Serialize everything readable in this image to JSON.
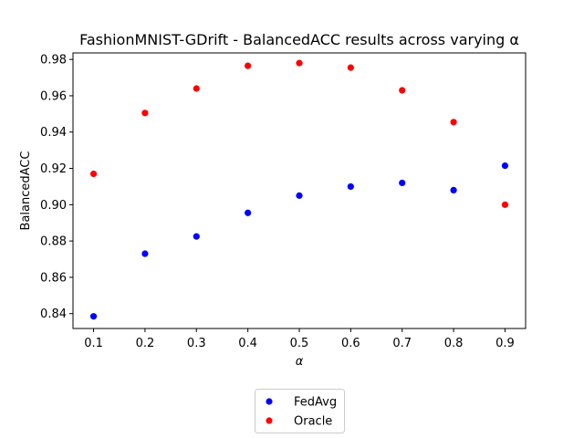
{
  "chart_data": {
    "type": "scatter",
    "title": "FashionMNIST-GDrift - BalancedACC results across varying α",
    "xlabel": "α",
    "ylabel": "BalancedACC",
    "x": [
      0.1,
      0.2,
      0.3,
      0.4,
      0.5,
      0.6,
      0.7,
      0.8,
      0.9
    ],
    "xticks": [
      "0.1",
      "0.2",
      "0.3",
      "0.4",
      "0.5",
      "0.6",
      "0.7",
      "0.8",
      "0.9"
    ],
    "yticks": [
      "0.84",
      "0.86",
      "0.88",
      "0.90",
      "0.92",
      "0.94",
      "0.96",
      "0.98"
    ],
    "xlim": [
      0.06,
      0.94
    ],
    "ylim": [
      0.8318,
      0.9836
    ],
    "grid": false,
    "legend_position": "bottom-center, outside plot",
    "series": [
      {
        "name": "FedAvg",
        "color": "#0000ff",
        "values": [
          0.8385,
          0.873,
          0.8825,
          0.8955,
          0.905,
          0.91,
          0.912,
          0.908,
          0.9215
        ]
      },
      {
        "name": "Oracle",
        "color": "#ff0000",
        "values": [
          0.917,
          0.9505,
          0.964,
          0.9765,
          0.978,
          0.9755,
          0.963,
          0.9455,
          0.9
        ]
      }
    ]
  }
}
